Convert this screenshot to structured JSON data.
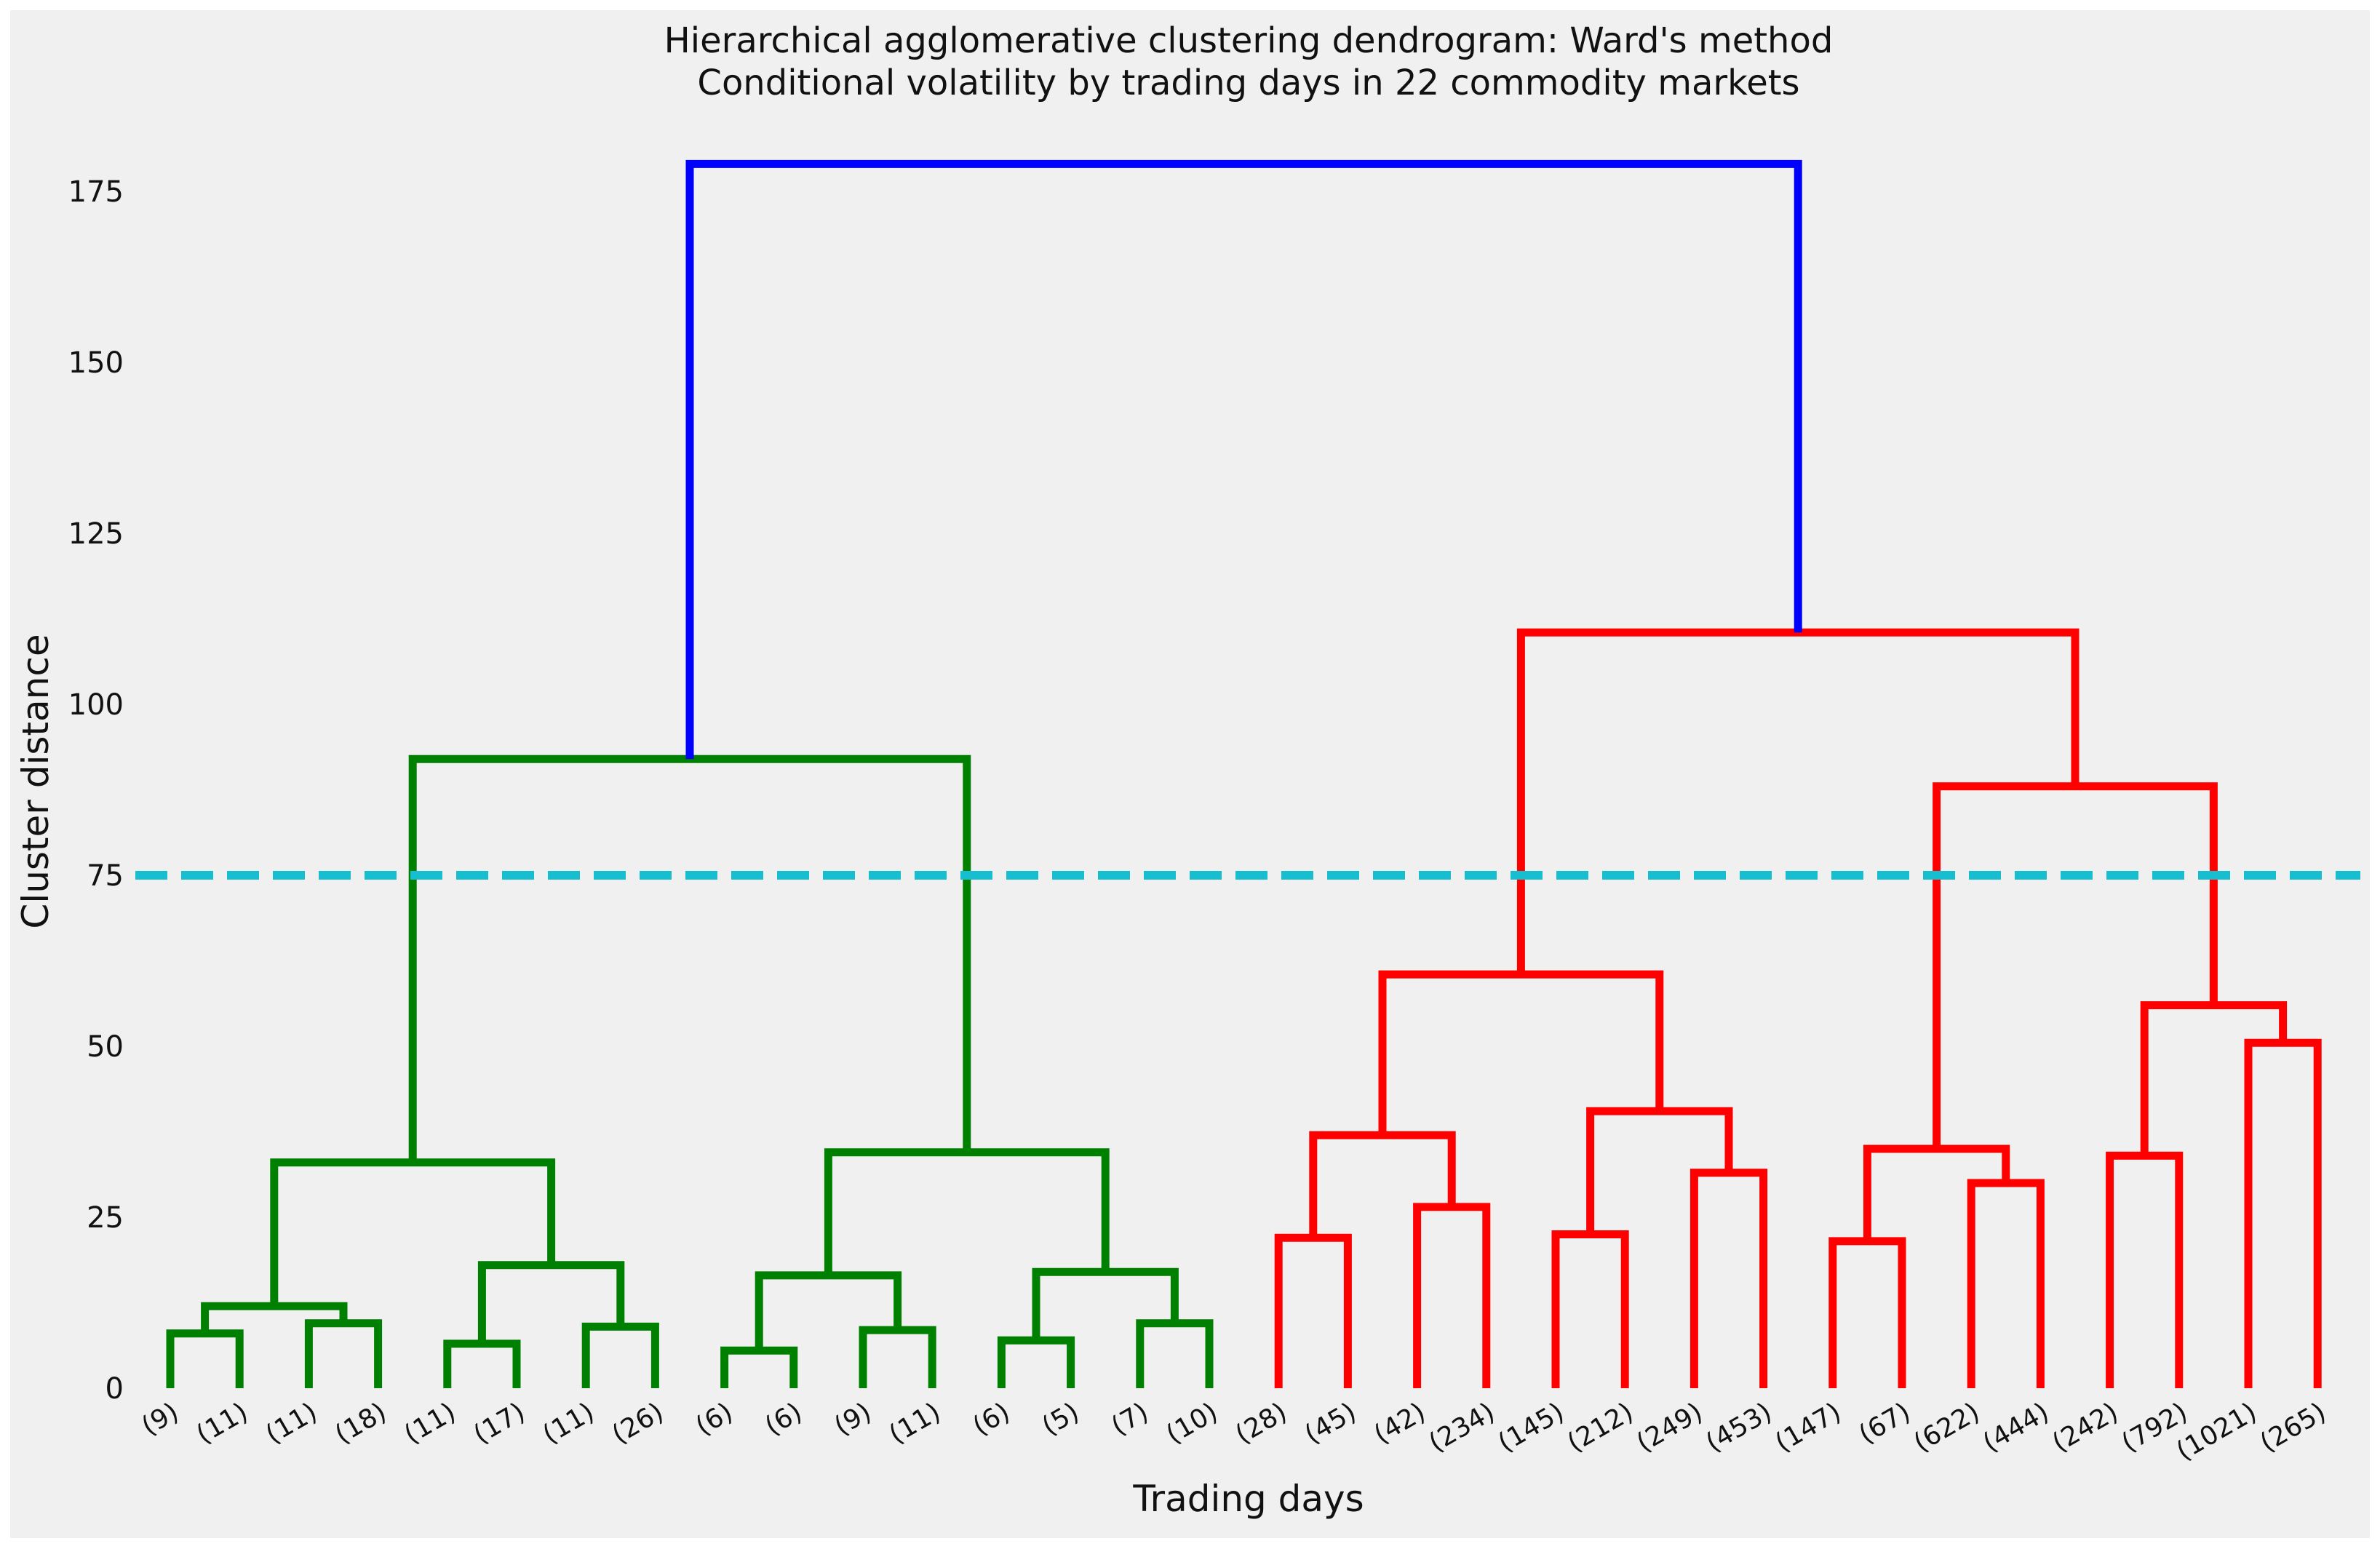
{
  "chart_data": {
    "type": "dendrogram",
    "title": "Hierarchical agglomerative clustering dendrogram: Ward's method",
    "subtitle": "Conditional volatility by trading days in 22 commodity markets",
    "xlabel": "Trading days",
    "ylabel": "Cluster distance",
    "ylim": [
      0,
      180
    ],
    "yticks": [
      0,
      25,
      50,
      75,
      100,
      125,
      150,
      175
    ],
    "grid": false,
    "leaves": [
      "(9)",
      "(11)",
      "(11)",
      "(18)",
      "(11)",
      "(17)",
      "(11)",
      "(26)",
      "(6)",
      "(6)",
      "(9)",
      "(11)",
      "(6)",
      "(5)",
      "(7)",
      "(10)",
      "(28)",
      "(45)",
      "(42)",
      "(234)",
      "(145)",
      "(212)",
      "(249)",
      "(453)",
      "(147)",
      "(67)",
      "(622)",
      "(444)",
      "(242)",
      "(792)",
      "(1021)",
      "(265)"
    ],
    "cut_line": {
      "value": 75,
      "color": "#17becf"
    },
    "cluster_colors": {
      "green": "#008000",
      "red": "#ff0000",
      "above_cut": "#0000ff"
    },
    "merges": [
      {
        "left": 0,
        "right": 1,
        "height": 8,
        "color": "green"
      },
      {
        "left": 2,
        "right": 3,
        "height": 9.5,
        "color": "green"
      },
      {
        "left": 4,
        "right": 5,
        "height": 6.5,
        "color": "green"
      },
      {
        "left": 6,
        "right": 7,
        "height": 9,
        "color": "green"
      },
      {
        "left": 8,
        "right": 9,
        "height": 5.5,
        "color": "green"
      },
      {
        "left": 10,
        "right": 11,
        "height": 8.5,
        "color": "green"
      },
      {
        "left": 12,
        "right": 13,
        "height": 7,
        "color": "green"
      },
      {
        "left": 14,
        "right": 15,
        "height": 9.5,
        "color": "green"
      },
      {
        "left": 16,
        "right": 17,
        "height": 22,
        "color": "red"
      },
      {
        "left": 18,
        "right": 19,
        "height": 26.5,
        "color": "red"
      },
      {
        "left": 20,
        "right": 21,
        "height": 22.5,
        "color": "red"
      },
      {
        "left": 22,
        "right": 23,
        "height": 31.5,
        "color": "red"
      },
      {
        "left": 24,
        "right": 25,
        "height": 21.5,
        "color": "red"
      },
      {
        "left": 26,
        "right": 27,
        "height": 30,
        "color": "red"
      },
      {
        "left": 28,
        "right": 29,
        "height": 34,
        "color": "red"
      },
      {
        "left": 30,
        "right": 31,
        "height": 50.5,
        "color": "red"
      },
      {
        "left": 32,
        "right": 33,
        "height": 12,
        "color": "green"
      },
      {
        "left": 34,
        "right": 35,
        "height": 18,
        "color": "green"
      },
      {
        "left": 36,
        "right": 37,
        "height": 16.5,
        "color": "green"
      },
      {
        "left": 38,
        "right": 39,
        "height": 17,
        "color": "green"
      },
      {
        "left": 40,
        "right": 41,
        "height": 37,
        "color": "red"
      },
      {
        "left": 42,
        "right": 43,
        "height": 40.5,
        "color": "red"
      },
      {
        "left": 44,
        "right": 45,
        "height": 35,
        "color": "red"
      },
      {
        "left": 46,
        "right": 47,
        "height": 56,
        "color": "red"
      },
      {
        "left": 48,
        "right": 49,
        "height": 33,
        "color": "green"
      },
      {
        "left": 50,
        "right": 51,
        "height": 34.5,
        "color": "green"
      },
      {
        "left": 52,
        "right": 53,
        "height": 60.5,
        "color": "red"
      },
      {
        "left": 54,
        "right": 55,
        "height": 88,
        "color": "red"
      },
      {
        "left": 56,
        "right": 57,
        "height": 92,
        "color": "green"
      },
      {
        "left": 58,
        "right": 59,
        "height": 110.5,
        "color": "red"
      },
      {
        "left": 60,
        "right": 61,
        "height": 179,
        "color": "above_cut"
      }
    ]
  }
}
